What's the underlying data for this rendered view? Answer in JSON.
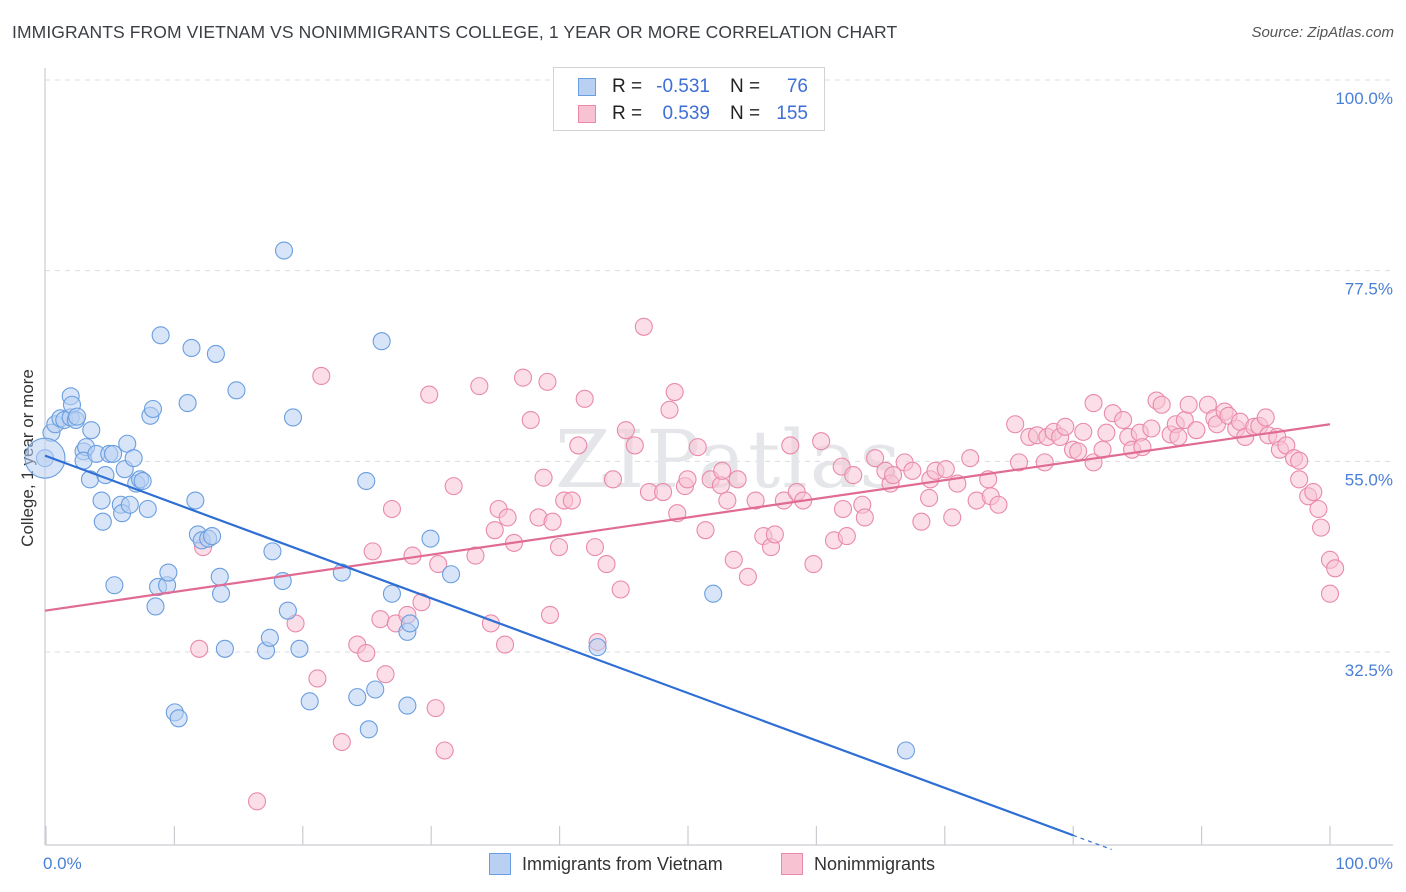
{
  "title": "IMMIGRANTS FROM VIETNAM VS NONIMMIGRANTS COLLEGE, 1 YEAR OR MORE CORRELATION CHART",
  "source": "Source: ZipAtlas.com",
  "watermark": "ZIPatlas",
  "colors": {
    "blue_fill": "#b8d0f2",
    "blue_stroke": "#6a9ee0",
    "blue_line": "#2f6fd4",
    "pink_fill": "#f7c3d3",
    "pink_stroke": "#e98aab",
    "pink_line": "#e06b94",
    "axis_text": "#4a7fd6",
    "grid": "#d9dce1"
  },
  "legend": {
    "rows": [
      {
        "series": "blue",
        "r_label": "R =",
        "r_value": "-0.531",
        "n_label": "N =",
        "n_value": "76"
      },
      {
        "series": "pink",
        "r_label": "R =",
        "r_value": "0.539",
        "n_label": "N =",
        "n_value": "155"
      }
    ]
  },
  "bottom_legend": [
    {
      "series": "blue",
      "label": "Immigrants from Vietnam"
    },
    {
      "series": "pink",
      "label": "Nonimmigrants"
    }
  ],
  "chart_data": {
    "type": "scatter",
    "title": "IMMIGRANTS FROM VIETNAM VS NONIMMIGRANTS COLLEGE, 1 YEAR OR MORE CORRELATION CHART",
    "xlabel": "",
    "ylabel": "College, 1 year or more",
    "xlim": [
      0,
      100
    ],
    "ylim": [
      10,
      104
    ],
    "x_tick_labels": [
      "0.0%",
      "100.0%"
    ],
    "y_ticks": [
      32.5,
      55.0,
      77.5,
      100.0
    ],
    "y_tick_labels": [
      "32.5%",
      "55.0%",
      "77.5%",
      "100.0%"
    ],
    "grid": true,
    "series": [
      {
        "name": "Immigrants from Vietnam",
        "color": "blue",
        "trend": {
          "x0": 0,
          "y0": 57.8,
          "x1": 80,
          "y1": 13.0,
          "dash_to_x": 83
        },
        "points": [
          [
            0.0,
            57.5
          ],
          [
            0.5,
            60.5
          ],
          [
            0.8,
            61.5
          ],
          [
            1.2,
            62.2
          ],
          [
            1.5,
            62.0
          ],
          [
            2.0,
            62.3
          ],
          [
            2.0,
            64.8
          ],
          [
            2.1,
            63.8
          ],
          [
            2.4,
            62.0
          ],
          [
            2.5,
            62.4
          ],
          [
            3.0,
            58.3
          ],
          [
            3.2,
            58.8
          ],
          [
            3.0,
            57.2
          ],
          [
            3.5,
            55.0
          ],
          [
            3.6,
            60.8
          ],
          [
            4.0,
            58.0
          ],
          [
            4.5,
            50.0
          ],
          [
            4.4,
            52.5
          ],
          [
            4.7,
            55.5
          ],
          [
            5.0,
            58.0
          ],
          [
            5.3,
            58.0
          ],
          [
            5.4,
            42.5
          ],
          [
            5.9,
            52.0
          ],
          [
            6.0,
            51.0
          ],
          [
            6.2,
            56.2
          ],
          [
            6.4,
            59.2
          ],
          [
            6.6,
            52.0
          ],
          [
            6.9,
            57.5
          ],
          [
            7.1,
            54.5
          ],
          [
            7.4,
            55.0
          ],
          [
            7.6,
            54.8
          ],
          [
            8.0,
            51.5
          ],
          [
            8.2,
            62.5
          ],
          [
            8.4,
            63.3
          ],
          [
            8.6,
            40.0
          ],
          [
            8.8,
            42.3
          ],
          [
            9.0,
            72.0
          ],
          [
            9.5,
            42.5
          ],
          [
            9.6,
            44.0
          ],
          [
            10.1,
            27.5
          ],
          [
            10.4,
            26.8
          ],
          [
            11.1,
            64.0
          ],
          [
            11.4,
            70.5
          ],
          [
            11.7,
            52.5
          ],
          [
            11.9,
            48.5
          ],
          [
            12.2,
            47.8
          ],
          [
            12.7,
            48.0
          ],
          [
            13.0,
            48.3
          ],
          [
            13.3,
            69.8
          ],
          [
            13.6,
            43.5
          ],
          [
            13.7,
            41.5
          ],
          [
            14.0,
            35.0
          ],
          [
            14.9,
            65.5
          ],
          [
            17.2,
            34.8
          ],
          [
            17.5,
            36.3
          ],
          [
            17.7,
            46.5
          ],
          [
            18.5,
            43.0
          ],
          [
            18.6,
            82.0
          ],
          [
            18.9,
            39.5
          ],
          [
            19.3,
            62.3
          ],
          [
            19.8,
            35.0
          ],
          [
            20.6,
            28.8
          ],
          [
            23.1,
            44.0
          ],
          [
            24.3,
            29.3
          ],
          [
            25.0,
            54.8
          ],
          [
            25.2,
            25.5
          ],
          [
            25.7,
            30.2
          ],
          [
            26.2,
            71.3
          ],
          [
            27.0,
            41.5
          ],
          [
            28.2,
            37.0
          ],
          [
            28.4,
            38.0
          ],
          [
            28.2,
            28.3
          ],
          [
            30.0,
            48.0
          ],
          [
            31.6,
            43.8
          ],
          [
            43.0,
            35.2
          ],
          [
            52.0,
            41.5
          ],
          [
            67.0,
            23.0
          ]
        ],
        "big_point": [
          0.0,
          57.5
        ]
      },
      {
        "name": "Nonimmigrants",
        "color": "pink",
        "trend": {
          "x0": 0,
          "y0": 39.5,
          "x1": 100,
          "y1": 61.5
        },
        "points": [
          [
            12.0,
            35.0
          ],
          [
            12.3,
            47.0
          ],
          [
            16.5,
            17.0
          ],
          [
            19.5,
            38.0
          ],
          [
            21.2,
            31.5
          ],
          [
            21.5,
            67.2
          ],
          [
            23.1,
            24.0
          ],
          [
            24.3,
            35.5
          ],
          [
            25.0,
            34.5
          ],
          [
            25.5,
            46.5
          ],
          [
            26.1,
            38.5
          ],
          [
            26.5,
            32.0
          ],
          [
            27.0,
            51.5
          ],
          [
            27.3,
            38.0
          ],
          [
            28.2,
            39.0
          ],
          [
            28.6,
            46.0
          ],
          [
            29.3,
            40.5
          ],
          [
            29.9,
            65.0
          ],
          [
            30.4,
            28.0
          ],
          [
            30.6,
            45.0
          ],
          [
            31.1,
            23.0
          ],
          [
            31.8,
            54.2
          ],
          [
            33.5,
            46.0
          ],
          [
            33.8,
            66.0
          ],
          [
            34.7,
            38.0
          ],
          [
            35.0,
            49.0
          ],
          [
            35.3,
            51.5
          ],
          [
            35.8,
            35.5
          ],
          [
            36.0,
            50.5
          ],
          [
            36.5,
            47.5
          ],
          [
            37.2,
            67.0
          ],
          [
            37.8,
            62.0
          ],
          [
            38.4,
            50.5
          ],
          [
            38.8,
            55.2
          ],
          [
            39.1,
            66.5
          ],
          [
            39.3,
            39.0
          ],
          [
            39.5,
            50.0
          ],
          [
            40.0,
            47.0
          ],
          [
            40.4,
            52.5
          ],
          [
            41.0,
            52.5
          ],
          [
            41.5,
            59.0
          ],
          [
            42.0,
            64.5
          ],
          [
            42.8,
            47.0
          ],
          [
            43.0,
            35.8
          ],
          [
            43.7,
            45.0
          ],
          [
            44.2,
            55.0
          ],
          [
            44.8,
            42.0
          ],
          [
            45.2,
            60.8
          ],
          [
            45.9,
            59.0
          ],
          [
            46.6,
            73.0
          ],
          [
            47.0,
            53.5
          ],
          [
            48.1,
            53.5
          ],
          [
            48.6,
            63.2
          ],
          [
            49.0,
            65.3
          ],
          [
            49.2,
            51.0
          ],
          [
            49.8,
            54.2
          ],
          [
            50.0,
            55.0
          ],
          [
            50.8,
            58.8
          ],
          [
            51.4,
            49.0
          ],
          [
            51.8,
            55.0
          ],
          [
            52.6,
            54.3
          ],
          [
            52.7,
            56.0
          ],
          [
            53.1,
            52.5
          ],
          [
            53.6,
            45.5
          ],
          [
            53.9,
            55.0
          ],
          [
            54.7,
            43.5
          ],
          [
            55.3,
            52.5
          ],
          [
            55.9,
            48.3
          ],
          [
            56.5,
            47.0
          ],
          [
            56.8,
            48.5
          ],
          [
            57.5,
            52.5
          ],
          [
            58.0,
            59.0
          ],
          [
            58.5,
            53.5
          ],
          [
            59.0,
            52.5
          ],
          [
            59.8,
            45.0
          ],
          [
            60.4,
            59.5
          ],
          [
            61.4,
            47.8
          ],
          [
            62.0,
            56.5
          ],
          [
            62.1,
            51.5
          ],
          [
            62.4,
            48.3
          ],
          [
            62.9,
            55.5
          ],
          [
            63.6,
            52.0
          ],
          [
            63.8,
            50.5
          ],
          [
            64.6,
            57.5
          ],
          [
            65.4,
            56.0
          ],
          [
            65.8,
            54.5
          ],
          [
            66.0,
            55.5
          ],
          [
            66.9,
            57.0
          ],
          [
            67.5,
            56.0
          ],
          [
            68.2,
            50.0
          ],
          [
            68.8,
            52.8
          ],
          [
            68.9,
            55.0
          ],
          [
            69.3,
            56.0
          ],
          [
            70.1,
            56.2
          ],
          [
            70.6,
            50.5
          ],
          [
            71.0,
            54.5
          ],
          [
            72.0,
            57.5
          ],
          [
            72.5,
            52.5
          ],
          [
            73.4,
            55.0
          ],
          [
            73.6,
            53.0
          ],
          [
            74.2,
            52.0
          ],
          [
            75.5,
            61.5
          ],
          [
            75.8,
            57.0
          ],
          [
            76.6,
            60.0
          ],
          [
            77.2,
            60.2
          ],
          [
            77.8,
            57.0
          ],
          [
            78.0,
            60.0
          ],
          [
            78.5,
            60.6
          ],
          [
            79.0,
            60.0
          ],
          [
            79.4,
            61.2
          ],
          [
            80.0,
            58.5
          ],
          [
            80.4,
            58.3
          ],
          [
            80.8,
            60.6
          ],
          [
            81.6,
            64.0
          ],
          [
            81.6,
            57.0
          ],
          [
            82.3,
            58.5
          ],
          [
            82.6,
            60.5
          ],
          [
            83.1,
            62.8
          ],
          [
            83.9,
            62.0
          ],
          [
            84.3,
            60.0
          ],
          [
            84.6,
            58.5
          ],
          [
            85.2,
            60.5
          ],
          [
            85.4,
            58.8
          ],
          [
            86.1,
            61.0
          ],
          [
            86.5,
            64.3
          ],
          [
            86.9,
            63.8
          ],
          [
            87.6,
            60.3
          ],
          [
            88.0,
            61.5
          ],
          [
            88.2,
            60.0
          ],
          [
            88.7,
            62.0
          ],
          [
            89.0,
            63.8
          ],
          [
            89.6,
            60.8
          ],
          [
            90.5,
            63.8
          ],
          [
            91.0,
            62.2
          ],
          [
            91.2,
            61.5
          ],
          [
            91.8,
            63.0
          ],
          [
            92.1,
            62.5
          ],
          [
            92.7,
            61.0
          ],
          [
            93.0,
            61.8
          ],
          [
            93.4,
            60.0
          ],
          [
            94.1,
            61.2
          ],
          [
            94.5,
            61.3
          ],
          [
            95.0,
            62.3
          ],
          [
            95.2,
            60.2
          ],
          [
            95.9,
            60.0
          ],
          [
            96.1,
            58.5
          ],
          [
            96.6,
            59.0
          ],
          [
            97.2,
            57.5
          ],
          [
            97.6,
            57.2
          ],
          [
            97.6,
            55.0
          ],
          [
            98.3,
            53.0
          ],
          [
            98.7,
            53.5
          ],
          [
            99.1,
            51.5
          ],
          [
            99.3,
            49.3
          ],
          [
            100.0,
            45.5
          ],
          [
            100.4,
            44.5
          ],
          [
            100.0,
            41.5
          ]
        ]
      }
    ]
  }
}
